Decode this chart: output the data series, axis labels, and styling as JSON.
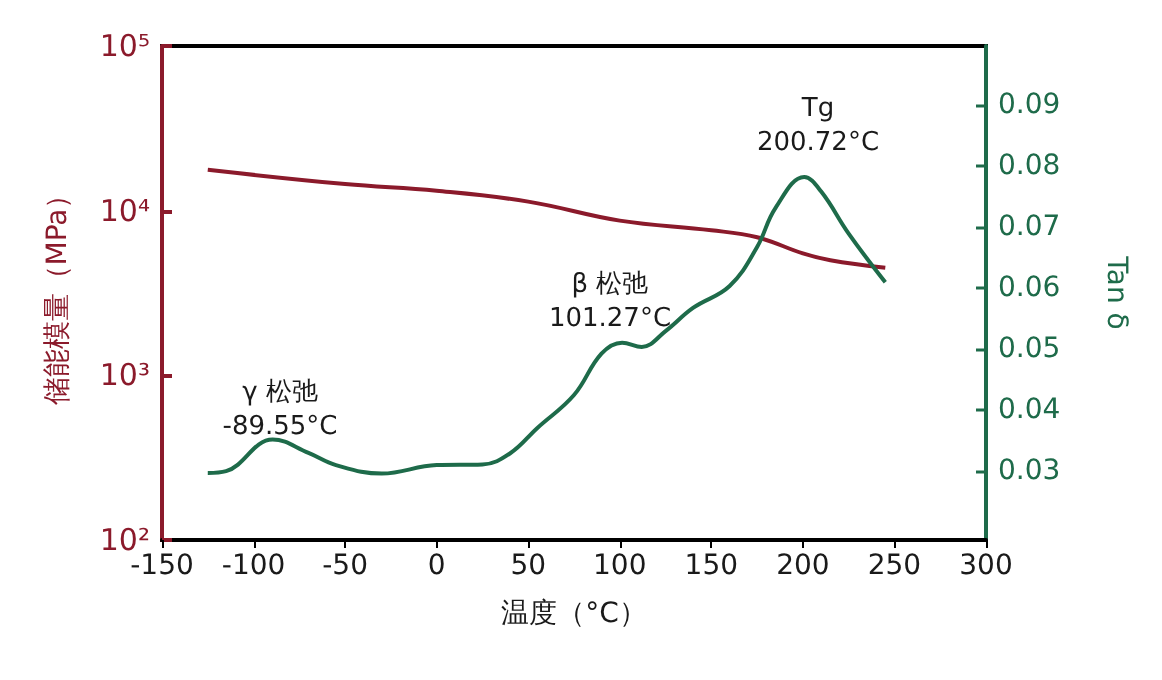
{
  "chart_data": {
    "type": "line",
    "xlabel": "温度（°C）",
    "ylabel": "储能模量（MPa）",
    "y2label": "Tan δ",
    "xlim": [
      -150,
      300
    ],
    "xticks": [
      -150,
      -100,
      -50,
      0,
      50,
      100,
      150,
      200,
      250,
      300
    ],
    "ylim": [
      100,
      100000
    ],
    "yticks": [
      {
        "value": 100,
        "label": "10²"
      },
      {
        "value": 1000,
        "label": "10³"
      },
      {
        "value": 10000,
        "label": "10⁴"
      },
      {
        "value": 100000,
        "label": "10⁵"
      }
    ],
    "log": "y",
    "y2lim": [
      0.0186,
      0.0997
    ],
    "y2ticks": [
      0.03,
      0.04,
      0.05,
      0.06,
      0.07,
      0.08,
      0.09
    ],
    "grid": false,
    "marker": "none",
    "line_style": "solid",
    "series": [
      {
        "color": "#8b1a2b",
        "x": [
          -125,
          -50,
          0,
          50,
          100,
          150,
          175,
          200,
          215,
          245
        ],
        "values": [
          17700,
          14500,
          13200,
          11350,
          8700,
          7600,
          6900,
          5500,
          5000,
          4500
        ]
      },
      {
        "color": "#1e6b4a",
        "axis": "y2",
        "x": [
          -125,
          -115,
          -89.55,
          -70,
          -55,
          -30,
          0,
          25,
          40,
          55,
          75,
          90,
          101.27,
          112,
          125,
          140,
          160,
          175,
          185,
          200.72,
          210,
          225,
          245
        ],
        "values": [
          0.0296,
          0.0299,
          0.0351,
          0.0329,
          0.0309,
          0.0295,
          0.0309,
          0.031,
          0.0328,
          0.037,
          0.0424,
          0.0492,
          0.051,
          0.0503,
          0.0529,
          0.0567,
          0.0603,
          0.0667,
          0.0731,
          0.0782,
          0.0758,
          0.0689,
          0.0609
        ]
      }
    ],
    "annotations": [
      "γ 松弛\n-89.55°C",
      "β 松弛\n101.27°C",
      "Tg\n200.72°C"
    ]
  }
}
